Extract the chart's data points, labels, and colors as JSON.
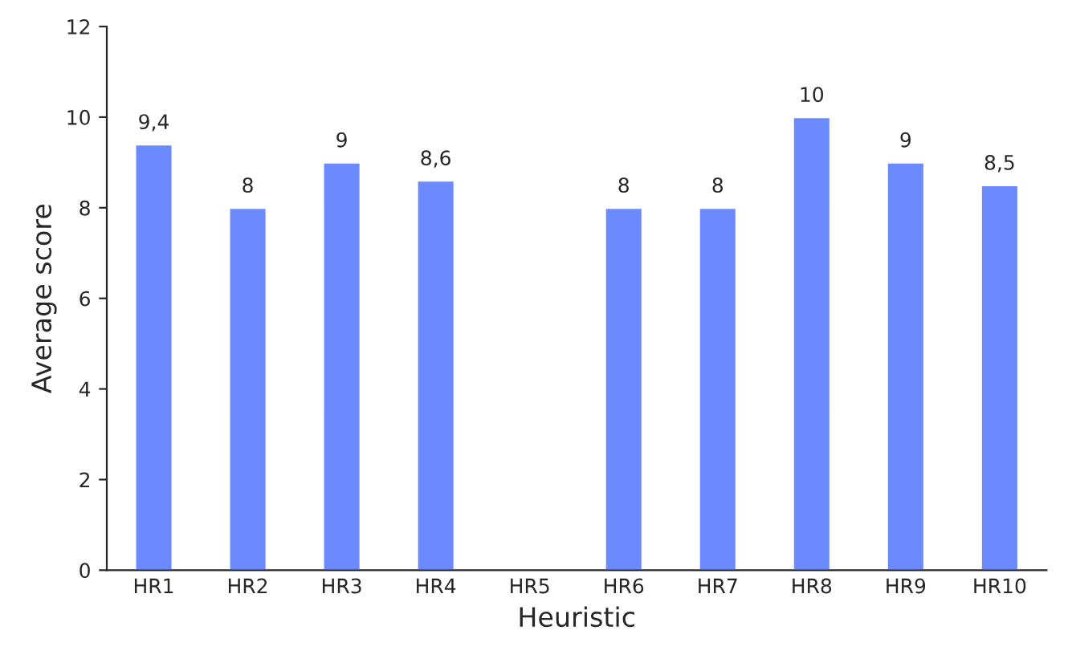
{
  "chart_data": {
    "type": "bar",
    "xlabel": "Heuristic",
    "ylabel": "Average score",
    "categories": [
      "HR1",
      "HR2",
      "HR3",
      "HR4",
      "HR5",
      "HR6",
      "HR7",
      "HR8",
      "HR9",
      "HR10"
    ],
    "values": [
      9.4,
      8,
      9,
      8.6,
      null,
      8,
      8,
      10,
      9,
      8.5
    ],
    "value_labels": [
      "9,4",
      "8",
      "9",
      "8,6",
      null,
      "8",
      "8",
      "10",
      "9",
      "8,5"
    ],
    "color": "#6b8afd",
    "ylim": [
      0,
      12
    ],
    "yticks": [
      0,
      2,
      4,
      6,
      8,
      10,
      12
    ],
    "grid": false
  }
}
